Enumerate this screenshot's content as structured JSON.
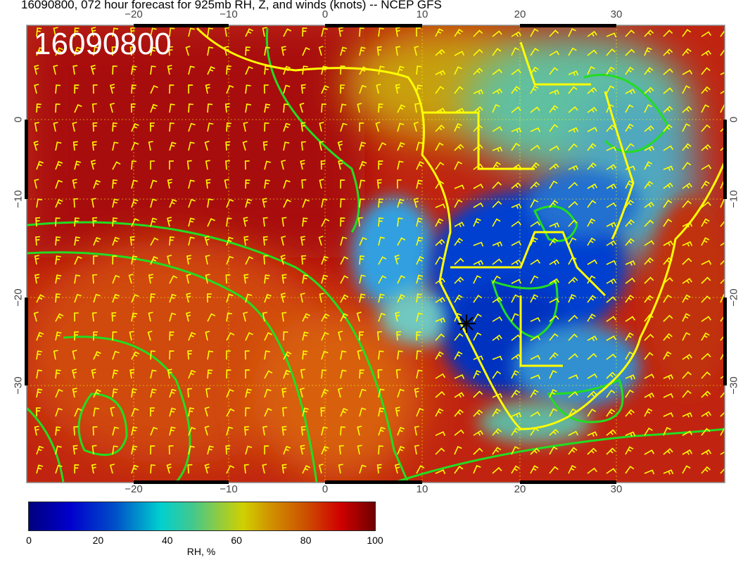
{
  "title": "16090800, 072 hour forecast for 925mb RH, Z, and winds (knots) -- NCEP GFS",
  "stamp": "16090800",
  "lon_ticks": [
    "−20",
    "−10",
    "0",
    "10",
    "20",
    "30"
  ],
  "lat_ticks": [
    "0",
    "−10",
    "−20",
    "−30"
  ],
  "colorbar": {
    "ticks": [
      "0",
      "20",
      "40",
      "60",
      "80",
      "100"
    ],
    "label": "RH, %",
    "range": [
      0,
      100
    ]
  },
  "colors": {
    "ocean_rh": "#b81a0c",
    "dry_rh": "#0030c0",
    "contour": "#22dd22",
    "coastline": "#ffff00",
    "wind_barbs": "#ffff00"
  },
  "marker": {
    "icon": "asterisk-marker",
    "lon": 14.5,
    "lat": -22.9
  }
}
